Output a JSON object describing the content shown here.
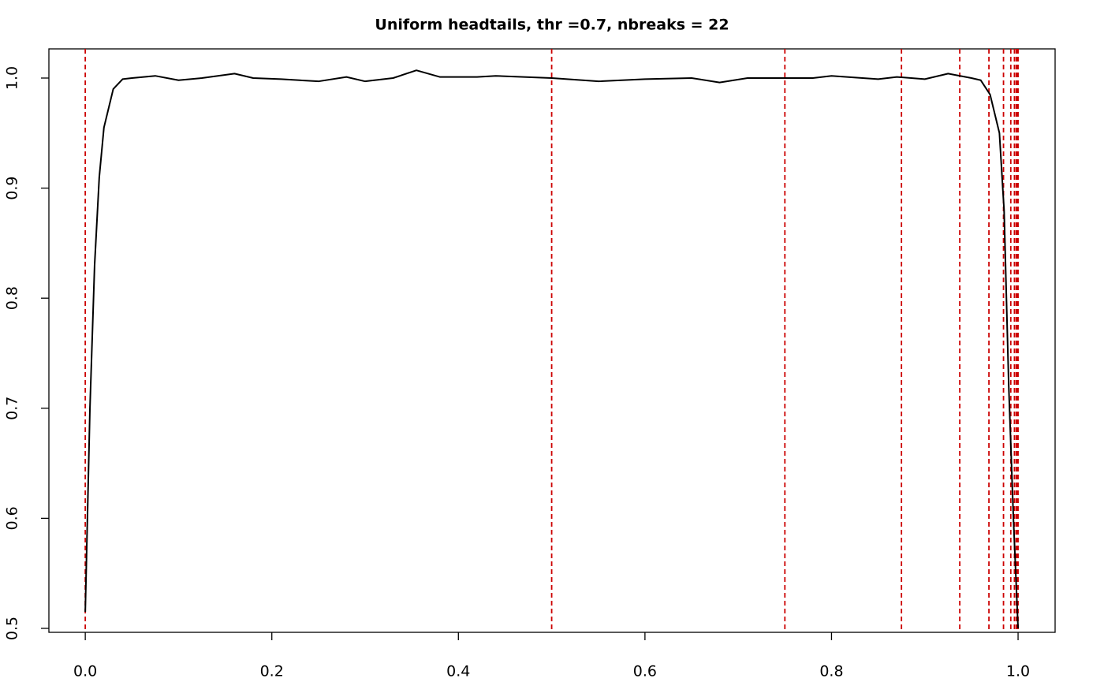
{
  "chart_data": {
    "type": "line",
    "title": "Uniform headtails, thr =0.7, nbreaks = 22",
    "x": [
      0.0,
      0.005,
      0.01,
      0.015,
      0.02,
      0.03,
      0.04,
      0.05,
      0.075,
      0.1,
      0.125,
      0.16,
      0.18,
      0.21,
      0.25,
      0.28,
      0.3,
      0.33,
      0.355,
      0.38,
      0.42,
      0.44,
      0.5,
      0.55,
      0.6,
      0.65,
      0.68,
      0.71,
      0.75,
      0.78,
      0.8,
      0.85,
      0.87,
      0.9,
      0.925,
      0.95,
      0.96,
      0.97,
      0.98,
      0.985,
      0.99,
      0.995,
      1.0
    ],
    "series": [
      {
        "color": "#000000",
        "values": [
          0.515,
          0.7,
          0.83,
          0.91,
          0.955,
          0.99,
          0.999,
          1.0,
          1.002,
          0.998,
          1.0,
          1.004,
          1.0,
          0.999,
          0.997,
          1.001,
          0.997,
          1.0,
          1.007,
          1.001,
          1.001,
          1.002,
          1.0,
          0.997,
          0.999,
          1.0,
          0.996,
          1.0,
          1.0,
          1.0,
          1.002,
          0.999,
          1.001,
          0.999,
          1.004,
          1.0,
          0.998,
          0.985,
          0.95,
          0.88,
          0.72,
          0.6,
          0.5
        ]
      }
    ],
    "breaks": {
      "color": "#cc0000",
      "values": [
        0,
        0.5,
        0.75,
        0.875,
        0.9375,
        0.96875,
        0.984375,
        0.9921875,
        0.99609375,
        0.998046875,
        0.9990234375,
        0.99951171875,
        1
      ]
    },
    "xlim": [
      -0.039,
      1.0397
    ],
    "ylim": [
      0.4964,
      1.0265
    ],
    "xticks": [
      {
        "value": 0,
        "label": "0.0"
      },
      0.2,
      0.4,
      0.6,
      0.8,
      {
        "value": 1,
        "label": "1.0"
      }
    ],
    "yticks": [
      0.5,
      0.6,
      0.7,
      0.8,
      0.9,
      {
        "value": 1,
        "label": "1.0"
      }
    ]
  }
}
